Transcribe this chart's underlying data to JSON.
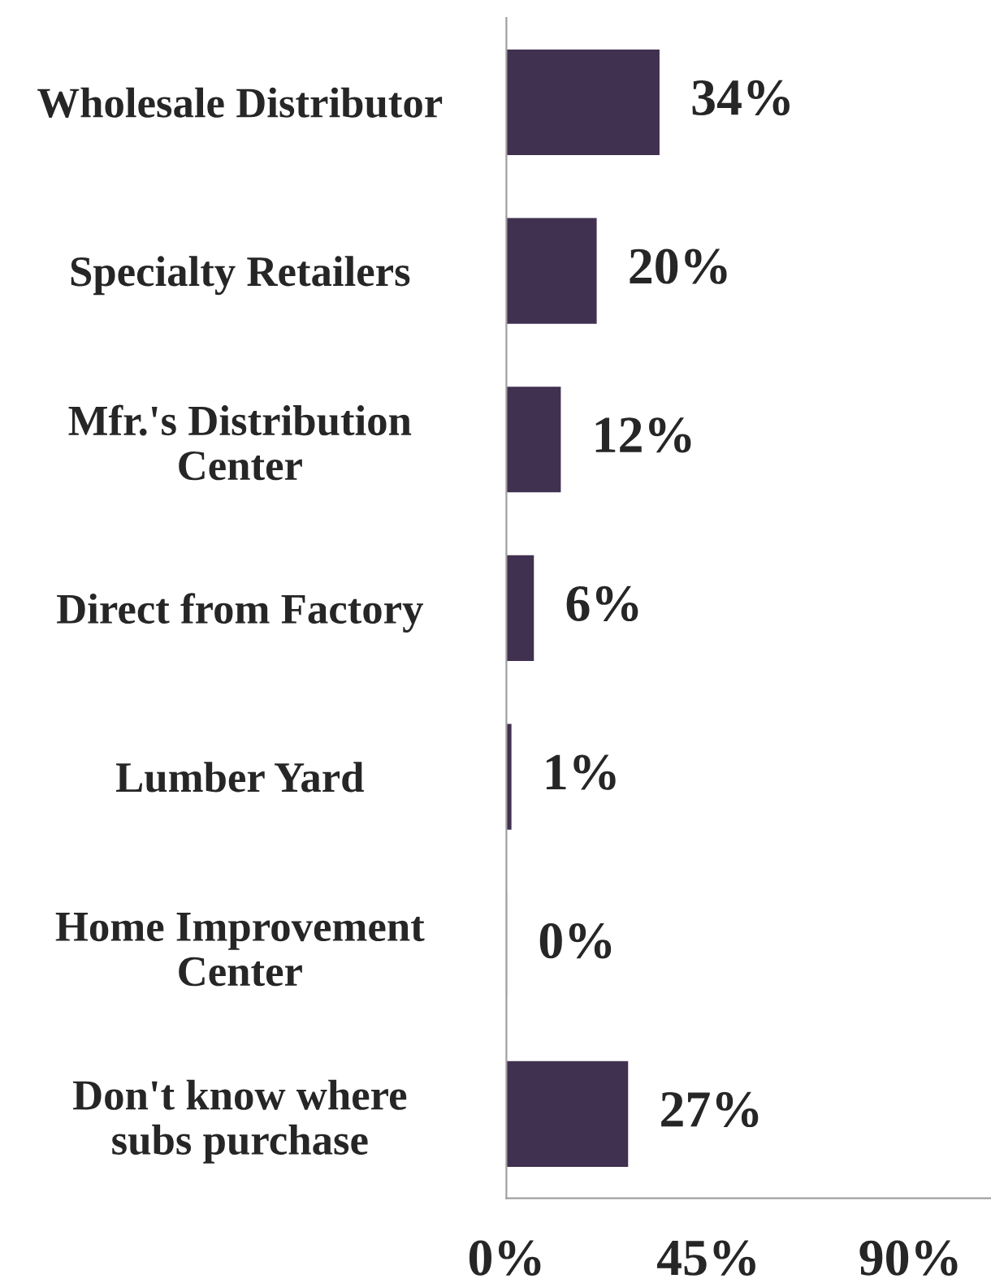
{
  "chart_data": {
    "type": "bar",
    "orientation": "horizontal",
    "categories": [
      "Wholesale Distributor",
      "Specialty Retailers",
      "Mfr.'s Distribution\nCenter",
      "Direct from Factory",
      "Lumber Yard",
      "Home Improvement\nCenter",
      "Don't know where\nsubs purchase"
    ],
    "values": [
      34,
      20,
      12,
      6,
      1,
      0,
      27
    ],
    "value_labels": [
      "34%",
      "20%",
      "12%",
      "6%",
      "1%",
      "0%",
      "27%"
    ],
    "color": "#413150",
    "xlim": [
      0,
      108
    ],
    "xticks": [
      {
        "value": 0,
        "label": "0%"
      },
      {
        "value": 45,
        "label": "45%"
      },
      {
        "value": 90,
        "label": "90%"
      }
    ],
    "grid": false,
    "legend": false
  }
}
